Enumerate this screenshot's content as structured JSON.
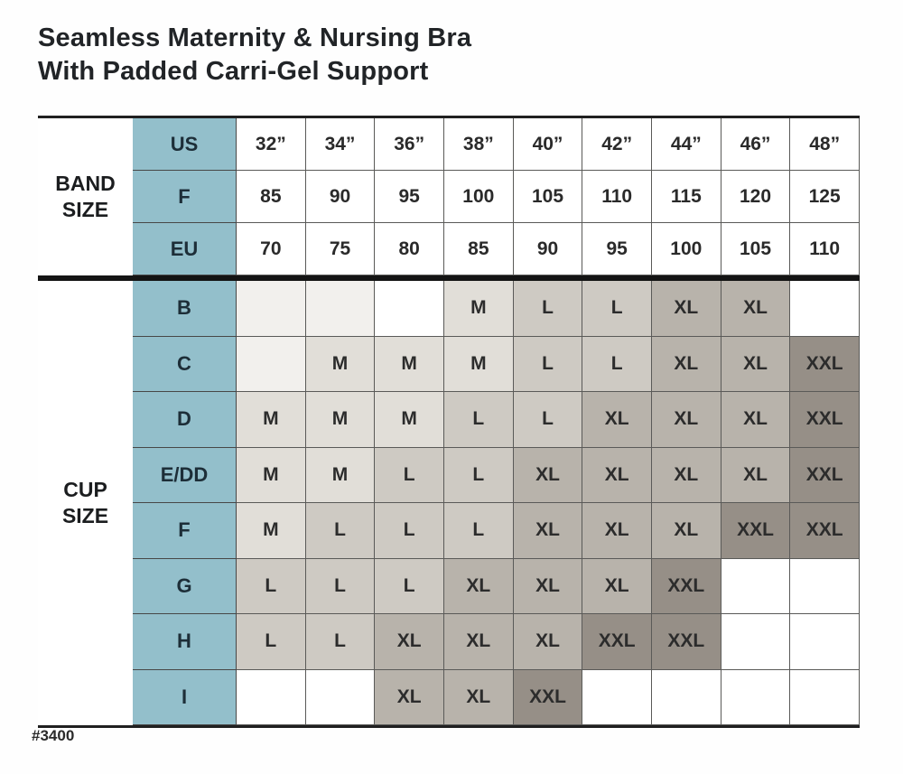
{
  "title": {
    "line1": "Seamless Maternity & Nursing Bra",
    "line2": "With Padded Carri-Gel Support"
  },
  "product_code": "#3400",
  "colors": {
    "header_teal": "#93bfcb",
    "size_m": "#e1ded8",
    "size_l": "#cecac3",
    "size_xl": "#b8b3ab",
    "size_xxl": "#968f87",
    "empty_tint": "#f2f0ed"
  },
  "table": {
    "band_section_label": "BAND\nSIZE",
    "cup_section_label": "CUP\nSIZE",
    "band_rows": [
      {
        "label": "US",
        "values": [
          "32”",
          "34”",
          "36”",
          "38”",
          "40”",
          "42”",
          "44”",
          "46”",
          "48”"
        ]
      },
      {
        "label": "F",
        "values": [
          "85",
          "90",
          "95",
          "100",
          "105",
          "110",
          "115",
          "120",
          "125"
        ]
      },
      {
        "label": "EU",
        "values": [
          "70",
          "75",
          "80",
          "85",
          "90",
          "95",
          "100",
          "105",
          "110"
        ]
      }
    ],
    "cup_rows": [
      {
        "label": "B",
        "values": [
          "~",
          "~",
          "",
          "M",
          "L",
          "L",
          "XL",
          "XL",
          ""
        ]
      },
      {
        "label": "C",
        "values": [
          "~",
          "M",
          "M",
          "M",
          "L",
          "L",
          "XL",
          "XL",
          "XXL"
        ]
      },
      {
        "label": "D",
        "values": [
          "M",
          "M",
          "M",
          "L",
          "L",
          "XL",
          "XL",
          "XL",
          "XXL"
        ]
      },
      {
        "label": "E/DD",
        "values": [
          "M",
          "M",
          "L",
          "L",
          "XL",
          "XL",
          "XL",
          "XL",
          "XXL"
        ]
      },
      {
        "label": "F",
        "values": [
          "M",
          "L",
          "L",
          "L",
          "XL",
          "XL",
          "XL",
          "XXL",
          "XXL"
        ]
      },
      {
        "label": "G",
        "values": [
          "L",
          "L",
          "L",
          "XL",
          "XL",
          "XL",
          "XXL",
          "",
          ""
        ]
      },
      {
        "label": "H",
        "values": [
          "L",
          "L",
          "XL",
          "XL",
          "XL",
          "XXL",
          "XXL",
          "",
          ""
        ]
      },
      {
        "label": "I",
        "values": [
          "",
          "",
          "XL",
          "XL",
          "XXL",
          "",
          "",
          "",
          ""
        ]
      }
    ]
  }
}
